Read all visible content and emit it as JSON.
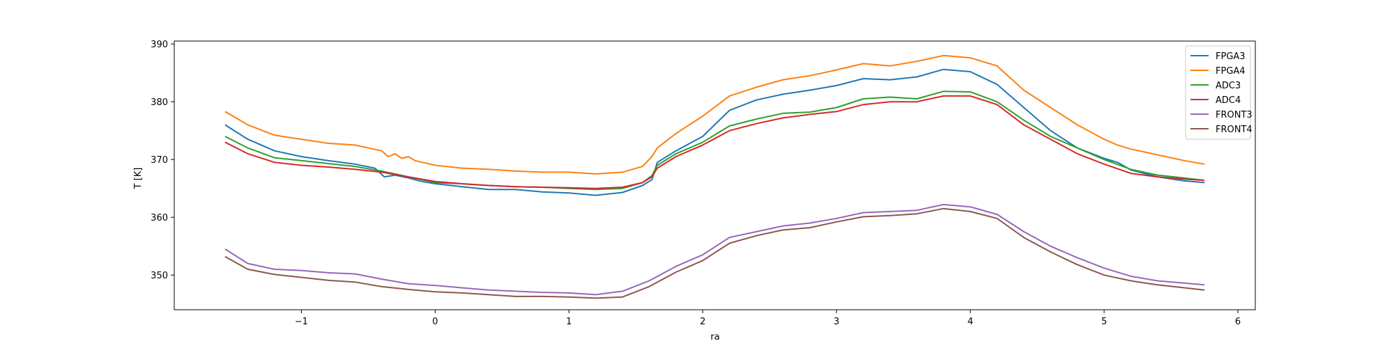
{
  "chart_data": {
    "type": "line",
    "title": "",
    "xlabel": "ra",
    "ylabel": "T [K]",
    "xlim": [
      -1.95,
      6.13
    ],
    "ylim": [
      344,
      390.5
    ],
    "xticks": [
      -1,
      0,
      1,
      2,
      3,
      4,
      5,
      6
    ],
    "yticks": [
      350,
      360,
      370,
      380,
      390
    ],
    "grid": false,
    "legend_position": "top-right",
    "series": [
      {
        "name": "FPGA3",
        "color": "#1f77b4",
        "x": [
          -1.57,
          -1.4,
          -1.2,
          -1.0,
          -0.8,
          -0.6,
          -0.45,
          -0.38,
          -0.3,
          -0.2,
          -0.1,
          0.0,
          0.2,
          0.4,
          0.6,
          0.8,
          1.0,
          1.2,
          1.4,
          1.55,
          1.62,
          1.66,
          1.8,
          2.0,
          2.2,
          2.4,
          2.6,
          2.8,
          3.0,
          3.2,
          3.4,
          3.6,
          3.8,
          4.0,
          4.2,
          4.4,
          4.6,
          4.8,
          5.0,
          5.1,
          5.2,
          5.4,
          5.6,
          5.75
        ],
        "y": [
          376,
          373.5,
          371.5,
          370.5,
          369.8,
          369.2,
          368.5,
          367,
          367.3,
          366.8,
          366.2,
          365.8,
          365.3,
          364.8,
          364.8,
          364.4,
          364.2,
          363.8,
          364.3,
          365.5,
          366.5,
          369.5,
          371.5,
          374,
          378.5,
          380.3,
          381.3,
          382,
          382.8,
          384,
          383.8,
          384.3,
          385.6,
          385.2,
          383,
          379,
          375,
          372,
          370.2,
          369.5,
          368.2,
          367,
          366.3,
          366
        ]
      },
      {
        "name": "FPGA4",
        "color": "#ff7f0e",
        "x": [
          -1.57,
          -1.4,
          -1.2,
          -1.0,
          -0.8,
          -0.6,
          -0.4,
          -0.35,
          -0.3,
          -0.25,
          -0.2,
          -0.15,
          0.0,
          0.2,
          0.4,
          0.6,
          0.8,
          1.0,
          1.2,
          1.4,
          1.55,
          1.62,
          1.66,
          1.8,
          2.0,
          2.2,
          2.4,
          2.6,
          2.8,
          3.0,
          3.2,
          3.4,
          3.6,
          3.8,
          4.0,
          4.2,
          4.4,
          4.6,
          4.8,
          5.0,
          5.1,
          5.2,
          5.4,
          5.6,
          5.75
        ],
        "y": [
          378.3,
          376,
          374.2,
          373.5,
          372.8,
          372.5,
          371.5,
          370.5,
          371,
          370.2,
          370.5,
          369.8,
          369,
          368.5,
          368.3,
          368,
          367.8,
          367.8,
          367.5,
          367.8,
          368.8,
          370.5,
          372,
          374.5,
          377.5,
          381,
          382.5,
          383.8,
          384.5,
          385.5,
          386.6,
          386.2,
          387,
          388,
          387.6,
          386.2,
          382,
          379,
          376,
          373.5,
          372.5,
          371.8,
          370.8,
          369.8,
          369.2
        ]
      },
      {
        "name": "ADC3",
        "color": "#2ca02c",
        "x": [
          -1.57,
          -1.4,
          -1.2,
          -1.0,
          -0.8,
          -0.6,
          -0.4,
          -0.3,
          -0.2,
          -0.1,
          0.0,
          0.2,
          0.4,
          0.6,
          0.8,
          1.0,
          1.2,
          1.4,
          1.55,
          1.62,
          1.66,
          1.8,
          2.0,
          2.2,
          2.4,
          2.6,
          2.8,
          3.0,
          3.2,
          3.4,
          3.6,
          3.8,
          4.0,
          4.2,
          4.4,
          4.6,
          4.8,
          5.0,
          5.2,
          5.4,
          5.6,
          5.75
        ],
        "y": [
          374,
          372,
          370.3,
          369.8,
          369.3,
          368.8,
          368,
          367.5,
          367,
          366.5,
          366,
          365.8,
          365.5,
          365.3,
          365.2,
          365,
          364.8,
          365,
          366,
          367.2,
          369,
          371,
          373,
          375.8,
          377,
          378,
          378.2,
          379,
          380.5,
          380.8,
          380.5,
          381.8,
          381.7,
          380,
          376.8,
          374,
          372,
          370,
          368.3,
          367.3,
          366.8,
          366.4
        ]
      },
      {
        "name": "ADC4",
        "color": "#d62728",
        "x": [
          -1.57,
          -1.4,
          -1.2,
          -1.0,
          -0.8,
          -0.6,
          -0.4,
          -0.2,
          0.0,
          0.2,
          0.4,
          0.6,
          0.8,
          1.0,
          1.2,
          1.4,
          1.55,
          1.62,
          1.66,
          1.8,
          2.0,
          2.2,
          2.4,
          2.6,
          2.8,
          3.0,
          3.2,
          3.4,
          3.6,
          3.8,
          4.0,
          4.2,
          4.4,
          4.6,
          4.8,
          5.0,
          5.2,
          5.4,
          5.6,
          5.75
        ],
        "y": [
          373,
          371,
          369.5,
          369,
          368.7,
          368.3,
          367.8,
          367,
          366.2,
          365.8,
          365.5,
          365.3,
          365.2,
          365.1,
          365.0,
          365.2,
          366,
          367,
          368.5,
          370.5,
          372.5,
          375,
          376.2,
          377.2,
          377.8,
          378.3,
          379.5,
          380,
          380,
          381,
          381,
          379.5,
          376,
          373.5,
          371,
          369.2,
          367.6,
          367,
          366.6,
          366.4
        ]
      },
      {
        "name": "FRONT3",
        "color": "#9467bd",
        "x": [
          -1.57,
          -1.4,
          -1.2,
          -1.0,
          -0.8,
          -0.6,
          -0.4,
          -0.2,
          0.0,
          0.2,
          0.4,
          0.6,
          0.8,
          1.0,
          1.2,
          1.4,
          1.6,
          1.8,
          2.0,
          2.2,
          2.4,
          2.6,
          2.8,
          3.0,
          3.2,
          3.4,
          3.6,
          3.8,
          4.0,
          4.2,
          4.4,
          4.6,
          4.8,
          5.0,
          5.2,
          5.4,
          5.6,
          5.75
        ],
        "y": [
          354.5,
          352,
          351,
          350.8,
          350.4,
          350.2,
          349.3,
          348.5,
          348.2,
          347.8,
          347.4,
          347.2,
          347.0,
          346.9,
          346.6,
          347.2,
          349,
          351.5,
          353.5,
          356.5,
          357.5,
          358.5,
          359,
          359.8,
          360.8,
          361.0,
          361.2,
          362.2,
          361.8,
          360.5,
          357.5,
          355,
          353,
          351.2,
          349.8,
          349,
          348.6,
          348.3
        ]
      },
      {
        "name": "FRONT4",
        "color": "#8c564b",
        "x": [
          -1.57,
          -1.4,
          -1.2,
          -1.0,
          -0.8,
          -0.6,
          -0.4,
          -0.2,
          0.0,
          0.2,
          0.4,
          0.6,
          0.8,
          1.0,
          1.2,
          1.4,
          1.6,
          1.8,
          2.0,
          2.2,
          2.4,
          2.6,
          2.8,
          3.0,
          3.2,
          3.4,
          3.6,
          3.8,
          4.0,
          4.2,
          4.4,
          4.6,
          4.8,
          5.0,
          5.2,
          5.4,
          5.6,
          5.75
        ],
        "y": [
          353.2,
          351,
          350.1,
          349.6,
          349.1,
          348.8,
          348.0,
          347.5,
          347.1,
          346.9,
          346.6,
          346.3,
          346.3,
          346.2,
          346.0,
          346.2,
          348,
          350.5,
          352.5,
          355.5,
          356.8,
          357.8,
          358.2,
          359.2,
          360.1,
          360.3,
          360.6,
          361.5,
          361.0,
          359.8,
          356.5,
          354,
          351.8,
          350,
          349,
          348.3,
          347.8,
          347.4
        ]
      }
    ]
  }
}
